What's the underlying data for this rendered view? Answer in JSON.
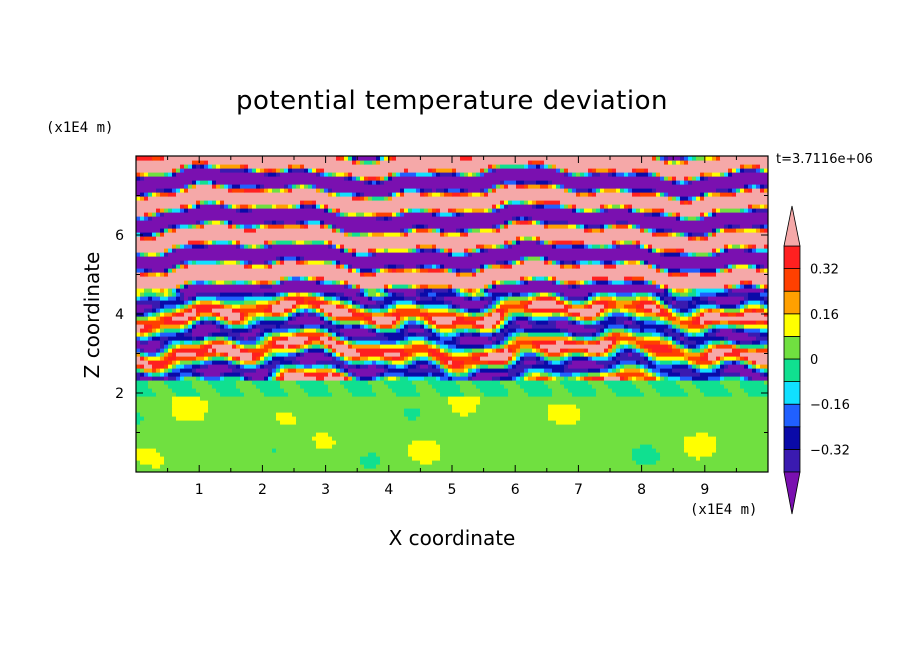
{
  "chart_data": {
    "type": "heatmap",
    "title": "potential temperature deviation",
    "xlabel": "X coordinate",
    "ylabel": "Z coordinate",
    "x_unit": "(x1E4 m)",
    "y_unit": "(x1E4 m)",
    "time_label": "t=3.7116e+06",
    "xlim": [
      0,
      10
    ],
    "ylim": [
      0,
      8
    ],
    "x_ticks": [
      1,
      2,
      3,
      4,
      5,
      6,
      7,
      8,
      9
    ],
    "y_ticks": [
      2,
      4,
      6
    ],
    "colorbar": {
      "levels": [
        -0.4,
        -0.32,
        -0.24,
        -0.16,
        -0.08,
        0,
        0.08,
        0.16,
        0.24,
        0.32,
        0.4
      ],
      "tick_labels": [
        "0.32",
        "0.16",
        "0",
        "−0.16",
        "−0.32"
      ],
      "tick_values": [
        0.32,
        0.16,
        0,
        -0.16,
        -0.32
      ],
      "colors": [
        "#7a10b0",
        "#3a1ab0",
        "#0a0aa8",
        "#2060ff",
        "#10e0ff",
        "#10e090",
        "#70e040",
        "#ffff00",
        "#ffa000",
        "#ff4000",
        "#ff2020",
        "#f5a8a8"
      ],
      "extend": "both"
    },
    "field_description": "lower layer (z<2) near zero (light green/green); upper layer alternating bands of strong positive (pink) and strong negative (purple) with turbulent transitions 2.5–4.5"
  }
}
